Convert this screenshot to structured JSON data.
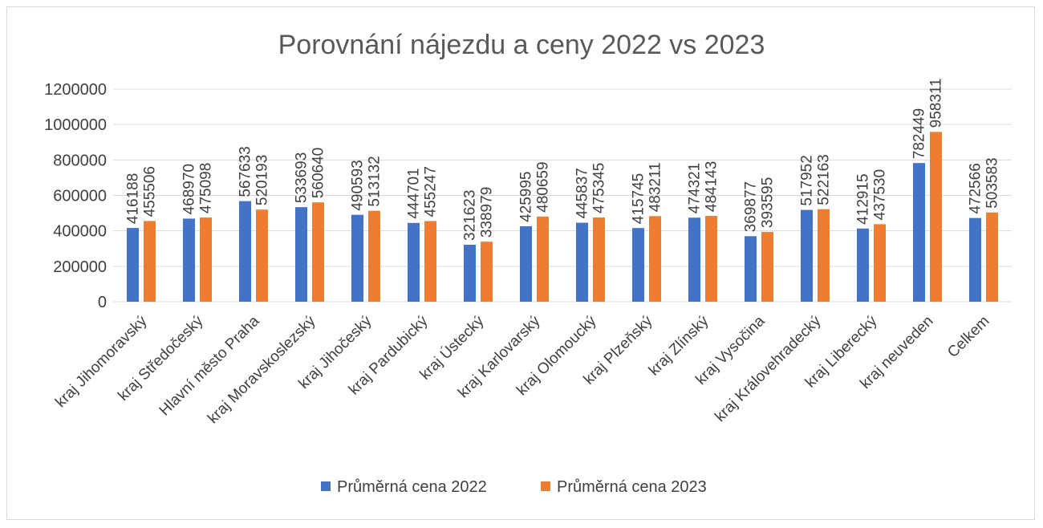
{
  "chart_data": {
    "type": "bar",
    "title": "Porovnání nájezdu a ceny 2022 vs 2023",
    "xlabel": "",
    "ylabel": "",
    "ylim": [
      0,
      1200000
    ],
    "yticks": [
      0,
      200000,
      400000,
      600000,
      800000,
      1000000,
      1200000
    ],
    "grid": true,
    "legend_position": "bottom",
    "categories": [
      "kraj Jihomoravský",
      "kraj Středočeský",
      "Hlavní město Praha",
      "kraj Moravskoslezský",
      "kraj Jihočeský",
      "kraj Pardubický",
      "kraj Ústecký",
      "kraj Karlovarský",
      "kraj Olomoucký",
      "kraj Plzeňský",
      "kraj Zlínský",
      "kraj Vysočina",
      "kraj Královehradecký",
      "kraj Liberecký",
      "kraj neuveden",
      "Celkem"
    ],
    "series": [
      {
        "name": "Průměrná cena 2022",
        "color": "#4472c4",
        "values": [
          416188,
          468970,
          567633,
          533693,
          490593,
          444701,
          321623,
          425995,
          445837,
          415745,
          474321,
          369877,
          517952,
          412915,
          782449,
          472566
        ]
      },
      {
        "name": "Průměrná cena 2023",
        "color": "#ed7d31",
        "values": [
          455506,
          475098,
          520193,
          560640,
          513132,
          455247,
          338979,
          480659,
          475345,
          483211,
          484143,
          393595,
          522163,
          437530,
          958311,
          503583
        ]
      }
    ]
  }
}
